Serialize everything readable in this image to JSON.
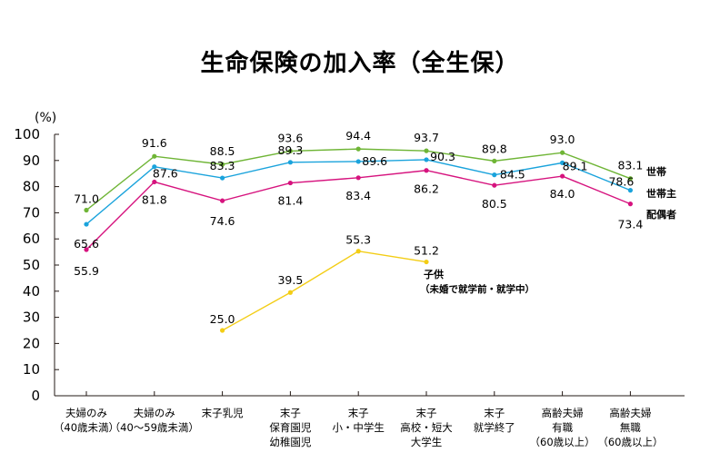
{
  "chart_data": {
    "type": "line",
    "title": "生命保険の加入率（全生保）",
    "ylabel": "(%)",
    "ylim": [
      0,
      100
    ],
    "yticks": [
      "0",
      "10",
      "20",
      "30",
      "40",
      "50",
      "60",
      "70",
      "80",
      "90",
      "100"
    ],
    "grid": false,
    "categories": [
      [
        "夫婦のみ",
        "（40歳未満）"
      ],
      [
        "夫婦のみ",
        "（40～59歳未満）"
      ],
      [
        "末子乳児"
      ],
      [
        "末子",
        "保育園児",
        "幼稚園児"
      ],
      [
        "末子",
        "小・中学生"
      ],
      [
        "末子",
        "高校・短大",
        "大学生"
      ],
      [
        "末子",
        "就学終了"
      ],
      [
        "高齢夫婦",
        "有職",
        "（60歳以上）"
      ],
      [
        "高齢夫婦",
        "無職",
        "（60歳以上）"
      ]
    ],
    "series": [
      {
        "name": "世帯",
        "color": "#6fb536",
        "values": [
          71.0,
          91.6,
          88.5,
          93.6,
          94.4,
          93.7,
          89.8,
          93.0,
          83.1
        ],
        "labels": [
          "71.0",
          "91.6",
          "88.5",
          "93.6",
          "94.4",
          "93.7",
          "89.8",
          "93.0",
          "83.1"
        ]
      },
      {
        "name": "世帯主",
        "color": "#1aa3dc",
        "values": [
          65.6,
          87.6,
          83.3,
          89.3,
          89.6,
          90.3,
          84.5,
          89.1,
          78.6
        ],
        "labels": [
          "65.6",
          "87.6",
          "83.3",
          "89.3",
          "89.6",
          "90.3",
          "84.5",
          "89.1",
          "78.6"
        ]
      },
      {
        "name": "配偶者",
        "color": "#d6137e",
        "values": [
          55.9,
          81.8,
          74.6,
          81.4,
          83.4,
          86.2,
          80.5,
          84.0,
          73.4
        ],
        "labels": [
          "55.9",
          "81.8",
          "74.6",
          "81.4",
          "83.4",
          "86.2",
          "80.5",
          "84.0",
          "73.4"
        ]
      },
      {
        "name": "子供",
        "note": "（未婚で就学前・就学中）",
        "color": "#f3cd15",
        "values": [
          null,
          null,
          25.0,
          39.5,
          55.3,
          51.2,
          null,
          null,
          null
        ],
        "labels": [
          null,
          null,
          "25.0",
          "39.5",
          "55.3",
          "51.2",
          null,
          null,
          null
        ]
      }
    ]
  }
}
